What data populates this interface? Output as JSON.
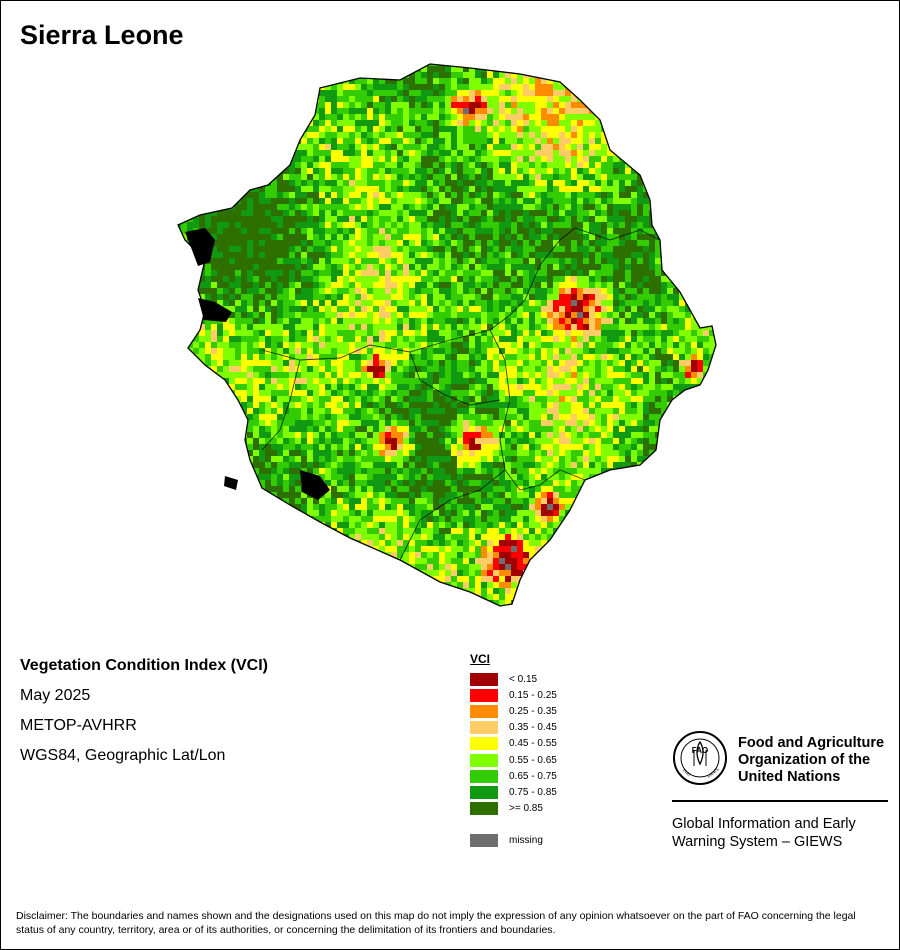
{
  "title": "Sierra Leone",
  "info": {
    "index_name": "Vegetation Condition Index (VCI)",
    "date": "May 2025",
    "sensor": "METOP-AVHRR",
    "projection": "WGS84, Geographic Lat/Lon"
  },
  "legend": {
    "title": "VCI",
    "classes": [
      {
        "label": "< 0.15",
        "color": "#a00000"
      },
      {
        "label": "0.15 - 0.25",
        "color": "#ff0000"
      },
      {
        "label": "0.25 - 0.35",
        "color": "#ff8c00"
      },
      {
        "label": "0.35 - 0.45",
        "color": "#ffcc66"
      },
      {
        "label": "0.45 - 0.55",
        "color": "#ffff00"
      },
      {
        "label": "0.55 - 0.65",
        "color": "#80ff00"
      },
      {
        "label": "0.65 - 0.75",
        "color": "#33cc00"
      },
      {
        "label": "0.75 - 0.85",
        "color": "#119911"
      },
      {
        "label": ">= 0.85",
        "color": "#2d7000"
      }
    ],
    "missing": {
      "label": "missing",
      "color": "#6e6e6e"
    }
  },
  "organization": {
    "name_lines": [
      "Food and Agriculture",
      "Organization of the",
      "United Nations"
    ],
    "logo_text": [
      "FAO",
      "FIAT",
      "PANIS"
    ],
    "system_lines": [
      "Global Information and Early",
      "Warning System – GIEWS"
    ]
  },
  "disclaimer": "Disclaimer: The boundaries and names shown and the designations used on this map do not imply the expression of any opinion whatsoever on the part of FAO concerning the legal status of any country, territory, area or of its authorities, or concerning the delimitation of its frontiers and boundaries."
}
